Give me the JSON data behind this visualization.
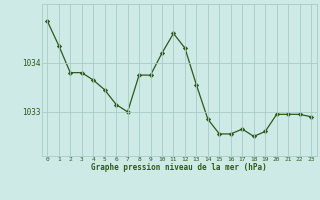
{
  "x": [
    0,
    1,
    2,
    3,
    4,
    5,
    6,
    7,
    8,
    9,
    10,
    11,
    12,
    13,
    14,
    15,
    16,
    17,
    18,
    19,
    20,
    21,
    22,
    23
  ],
  "y": [
    1034.85,
    1034.35,
    1033.8,
    1033.8,
    1033.65,
    1033.45,
    1033.15,
    1033.0,
    1033.75,
    1033.75,
    1034.2,
    1034.6,
    1034.3,
    1033.55,
    1032.85,
    1032.55,
    1032.55,
    1032.65,
    1032.5,
    1032.6,
    1032.95,
    1032.95,
    1032.95,
    1032.9
  ],
  "yticks": [
    1033,
    1034
  ],
  "xticks": [
    0,
    1,
    2,
    3,
    4,
    5,
    6,
    7,
    8,
    9,
    10,
    11,
    12,
    13,
    14,
    15,
    16,
    17,
    18,
    19,
    20,
    21,
    22,
    23
  ],
  "line_color": "#2d5a1b",
  "marker_color": "#2d5a1b",
  "bg_color": "#ceeae7",
  "grid_color": "#a8ccc8",
  "axis_color": "#2d5a1b",
  "xlabel": "Graphe pression niveau de la mer (hPa)",
  "xlabel_color": "#2d5a1b",
  "ylim": [
    1032.1,
    1035.2
  ],
  "xlim": [
    -0.5,
    23.5
  ]
}
